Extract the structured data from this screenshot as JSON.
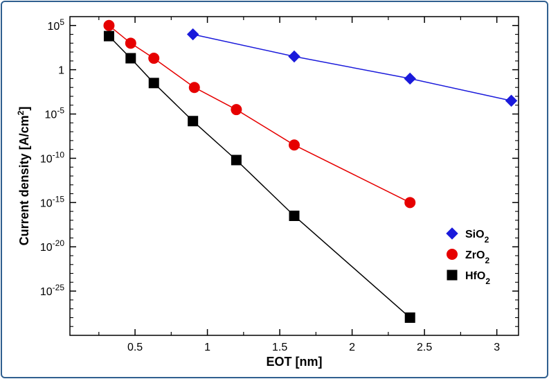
{
  "chart_data": {
    "type": "line",
    "xlabel": "EOT  [nm]",
    "ylabel": "Current density  [A/cm2]",
    "ylabel_parts": {
      "main": "Current density  [A/cm",
      "sup": "2",
      "end": "]"
    },
    "xlim": [
      0.05,
      3.15
    ],
    "ylim_log10": [
      -30,
      6
    ],
    "y_scale": "log",
    "x_ticks": [
      0.5,
      1,
      1.5,
      2,
      2.5,
      3
    ],
    "x_tick_labels": [
      "0.5",
      "1",
      "1.5",
      "2",
      "2.5",
      "3"
    ],
    "y_ticks_log10": [
      5,
      0,
      -5,
      -10,
      -15,
      -20,
      -25
    ],
    "y_tick_labels": [
      {
        "base": "10",
        "exp": "5"
      },
      {
        "base": "1",
        "exp": ""
      },
      {
        "base": "10",
        "exp": "-5"
      },
      {
        "base": "10",
        "exp": "-10"
      },
      {
        "base": "10",
        "exp": "-15"
      },
      {
        "base": "10",
        "exp": "-20"
      },
      {
        "base": "10",
        "exp": "-25"
      }
    ],
    "legend_position": "bottom-right",
    "grid": false,
    "series": [
      {
        "name": "SiO2",
        "name_parts": {
          "main": "SiO",
          "sub": "2"
        },
        "color": "#1a1adb",
        "marker": "diamond",
        "x": [
          0.9,
          1.6,
          2.4,
          3.1
        ],
        "y_log10": [
          4.0,
          1.5,
          -1.0,
          -3.5
        ]
      },
      {
        "name": "ZrO2",
        "name_parts": {
          "main": "ZrO",
          "sub": "2"
        },
        "color": "#e60000",
        "marker": "circle",
        "x": [
          0.32,
          0.47,
          0.63,
          0.91,
          1.2,
          1.6,
          2.4
        ],
        "y_log10": [
          5.0,
          3.0,
          1.3,
          -2.0,
          -4.5,
          -8.5,
          -15.0
        ]
      },
      {
        "name": "HfO2",
        "name_parts": {
          "main": "HfO",
          "sub": "2"
        },
        "color": "#000000",
        "marker": "square",
        "x": [
          0.32,
          0.47,
          0.63,
          0.9,
          1.2,
          1.6,
          2.4
        ],
        "y_log10": [
          3.8,
          1.3,
          -1.5,
          -5.8,
          -10.2,
          -16.5,
          -28.0
        ]
      }
    ]
  }
}
